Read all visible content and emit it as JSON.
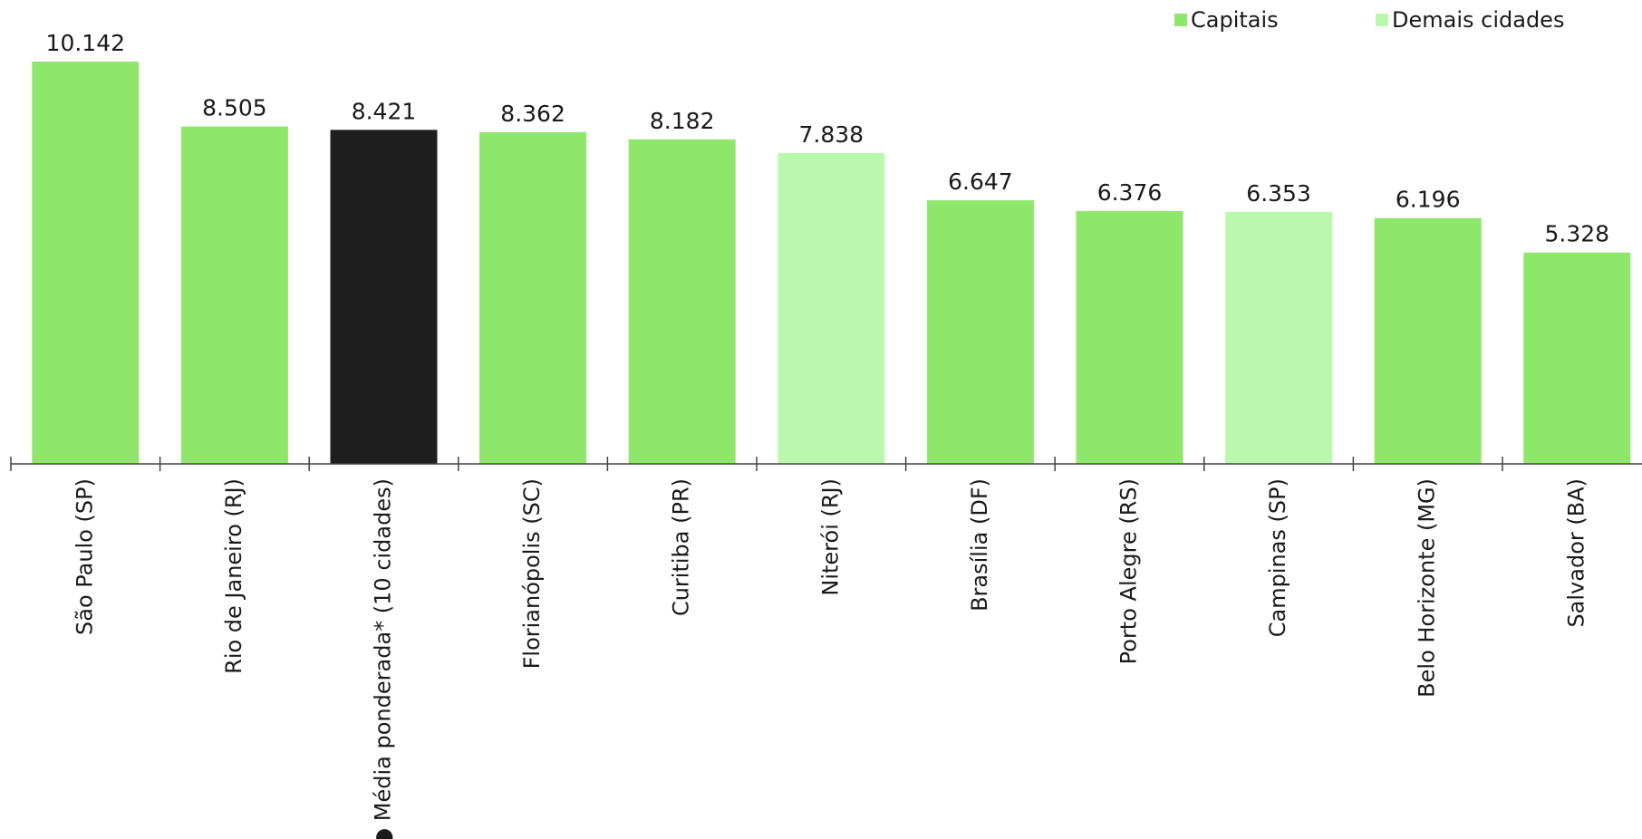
{
  "chart_data": {
    "type": "bar",
    "categories": [
      "São Paulo (SP)",
      "Rio de Janeiro (RJ)",
      "● Média ponderada* (10 cidades)",
      "Florianópolis (SC)",
      "Curitiba (PR)",
      "Niterói (RJ)",
      "Brasília (DF)",
      "Porto Alegre (RS)",
      "Campinas (SP)",
      "Belo Horizonte (MG)",
      "Salvador (BA)"
    ],
    "values": [
      10142,
      8505,
      8421,
      8362,
      8182,
      7838,
      6647,
      6376,
      6353,
      6196,
      5328
    ],
    "value_labels": [
      "10.142",
      "8.505",
      "8.421",
      "8.362",
      "8.182",
      "7.838",
      "6.647",
      "6.376",
      "6.353",
      "6.196",
      "5.328"
    ],
    "groups": [
      "Capitais",
      "Capitais",
      "Média",
      "Capitais",
      "Capitais",
      "Demais cidades",
      "Capitais",
      "Capitais",
      "Demais cidades",
      "Capitais",
      "Capitais"
    ],
    "legend": [
      {
        "label": "Capitais",
        "color": "#8ee66a"
      },
      {
        "label": "Demais cidades",
        "color": "#baf9ad"
      }
    ],
    "colors": {
      "Capitais": "#8ee66a",
      "Demais cidades": "#baf9ad",
      "Média": "#1e1e1e"
    },
    "ylim": [
      0,
      10142
    ],
    "legend_position": "top-right",
    "grid": false,
    "title": "",
    "xlabel": "",
    "ylabel": ""
  }
}
